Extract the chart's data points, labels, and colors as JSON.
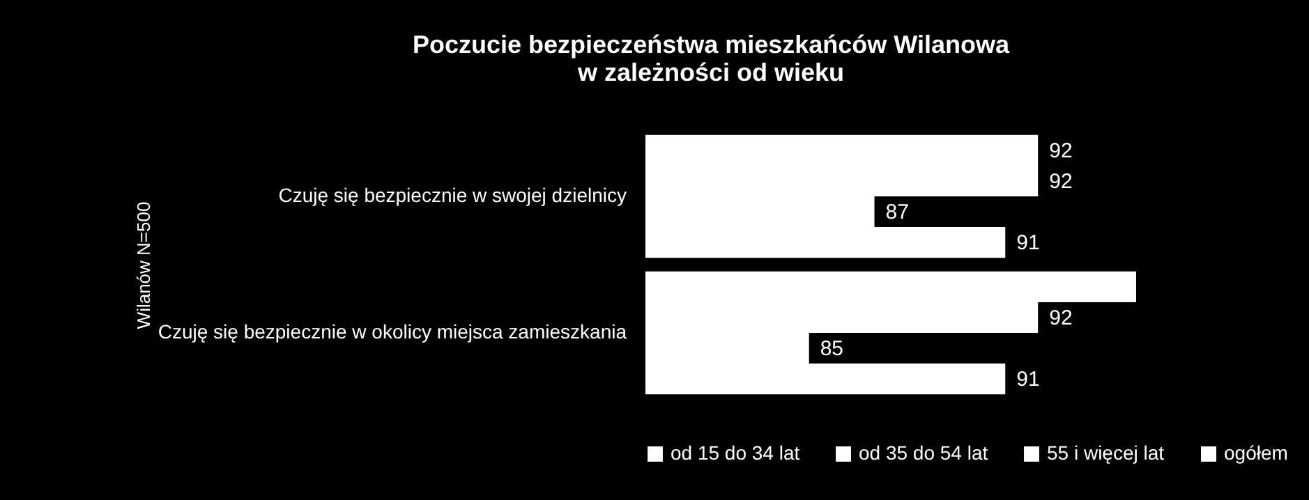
{
  "chart_data": {
    "type": "bar",
    "orientation": "horizontal",
    "title": [
      "Poczucie bezpieczeństwa mieszkańców Wilanowa",
      "w zależności od wieku"
    ],
    "ylabel": "Wilanów N=500",
    "categories": [
      "Czuję się bezpiecznie w swojej dzielnicy",
      "Czuję się bezpiecznie w okolicy miejsca zamieszkania"
    ],
    "series": [
      {
        "name": "od 15 do 34 lat",
        "color": "#ffffff",
        "values": [
          92,
          95
        ],
        "value_labels": [
          "92",
          null
        ]
      },
      {
        "name": "od 35 do 54 lat",
        "color": "#ffffff",
        "values": [
          92,
          92
        ],
        "value_labels": [
          "92",
          "92"
        ]
      },
      {
        "name": "55 i więcej lat",
        "color": "#ffffff",
        "values": [
          87,
          85
        ],
        "value_labels": [
          "87",
          "85"
        ]
      },
      {
        "name": "ogółem",
        "color": "#ffffff",
        "values": [
          91,
          91
        ],
        "value_labels": [
          "91",
          "91"
        ]
      }
    ],
    "xlim": [
      80,
      95
    ],
    "legend": "bottom"
  }
}
